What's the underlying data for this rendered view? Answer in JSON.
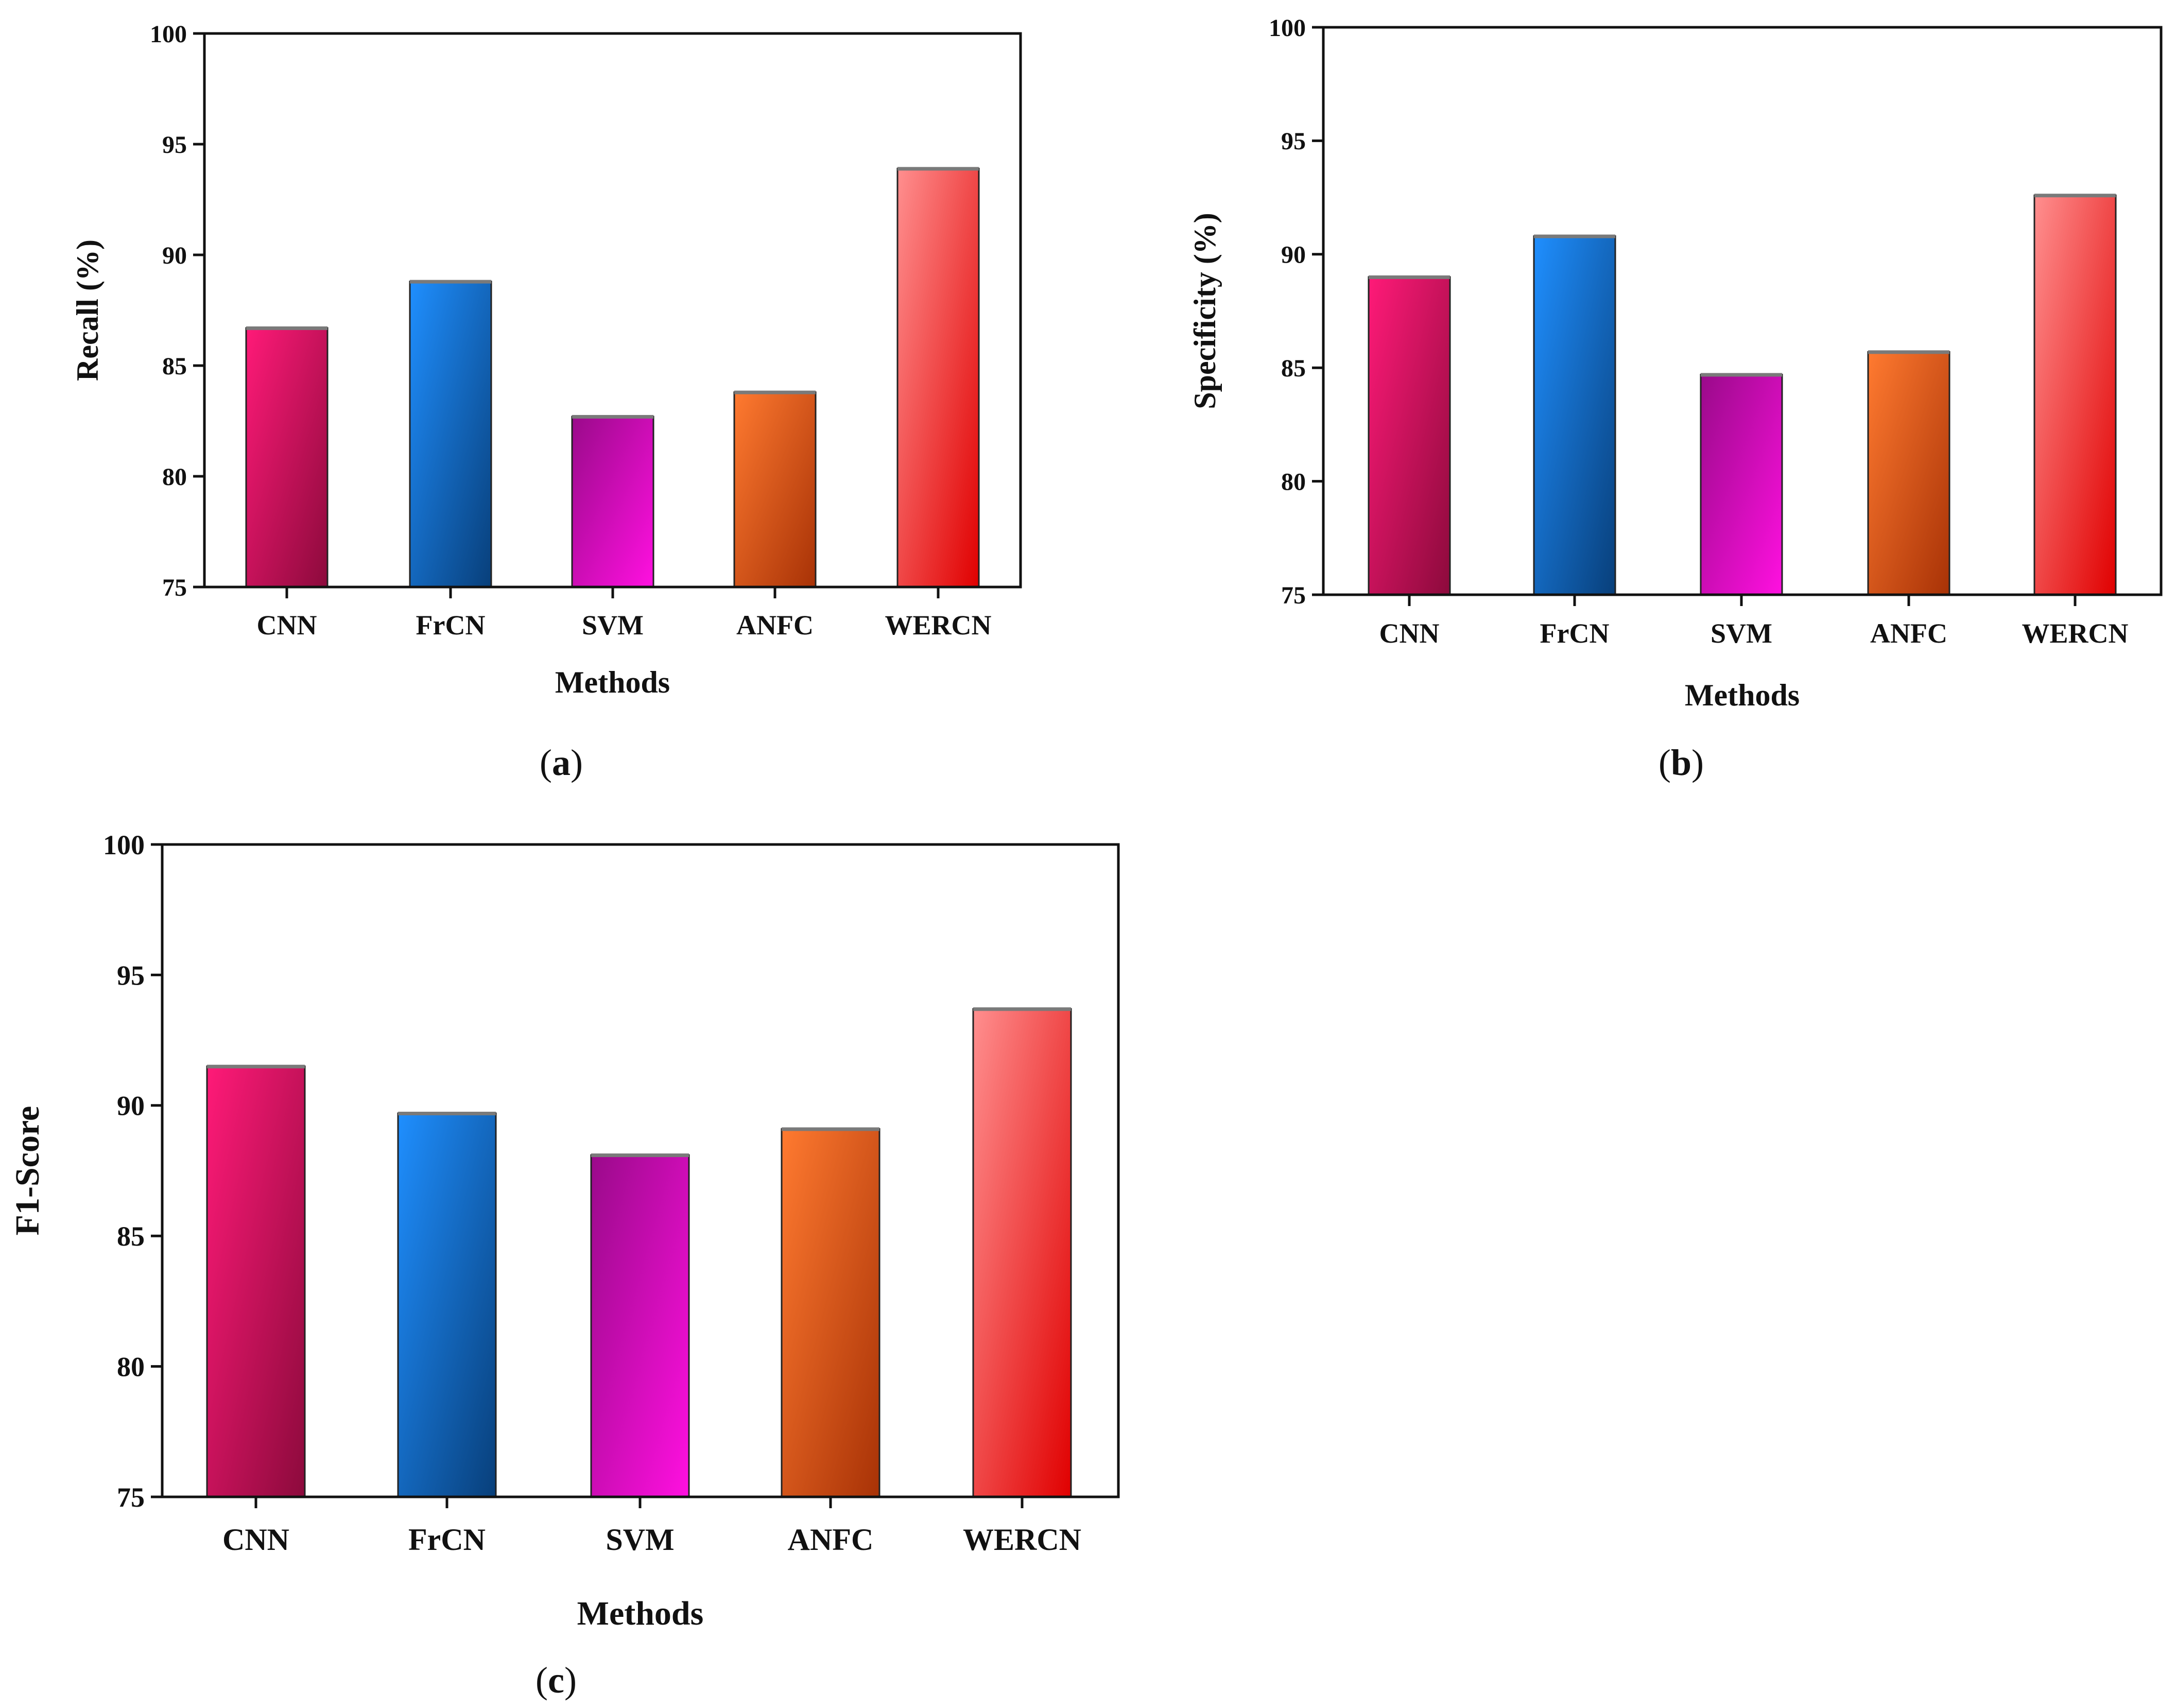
{
  "figure_colors": {
    "CNN": [
      "#ff1a78",
      "#8c0a3c"
    ],
    "FrCN": [
      "#1f8fff",
      "#083f7a"
    ],
    "SVM": [
      "#9a0a8a",
      "#ff10e0"
    ],
    "ANFC": [
      "#ff7a30",
      "#a83206"
    ],
    "WERCN": [
      "#ff8f8f",
      "#e00000"
    ],
    "bar_cap": "#7a7a7a",
    "axis": "#111111"
  },
  "chart_data": [
    {
      "id": "a",
      "type": "bar",
      "caption_letter": "a",
      "caption_open": "(",
      "caption_close": ")",
      "title": "",
      "xlabel": "Methods",
      "ylabel": "Recall (%)",
      "ylim": [
        75,
        100
      ],
      "yticks": [
        "75",
        "80",
        "85",
        "90",
        "95",
        "100"
      ],
      "categories": [
        "CNN",
        "FrCN",
        "SVM",
        "ANFC",
        "WERCN"
      ],
      "values": [
        86.7,
        88.8,
        82.7,
        83.8,
        93.9
      ],
      "grid": false
    },
    {
      "id": "b",
      "type": "bar",
      "caption_letter": "b",
      "caption_open": "(",
      "caption_close": ")",
      "title": "",
      "xlabel": "Methods",
      "ylabel": "Specificity (%)",
      "ylim": [
        75,
        100
      ],
      "yticks": [
        "75",
        "80",
        "85",
        "90",
        "95",
        "100"
      ],
      "categories": [
        "CNN",
        "FrCN",
        "SVM",
        "ANFC",
        "WERCN"
      ],
      "values": [
        89.0,
        90.8,
        84.7,
        85.7,
        92.6
      ],
      "grid": false
    },
    {
      "id": "c",
      "type": "bar",
      "caption_letter": "c",
      "caption_open": "(",
      "caption_close": ")",
      "title": "",
      "xlabel": "Methods",
      "ylabel": "F1-Score",
      "ylim": [
        75,
        100
      ],
      "yticks": [
        "75",
        "80",
        "85",
        "90",
        "95",
        "100"
      ],
      "categories": [
        "CNN",
        "FrCN",
        "SVM",
        "ANFC",
        "WERCN"
      ],
      "values": [
        91.5,
        89.7,
        88.1,
        89.1,
        93.7
      ],
      "grid": false
    }
  ]
}
